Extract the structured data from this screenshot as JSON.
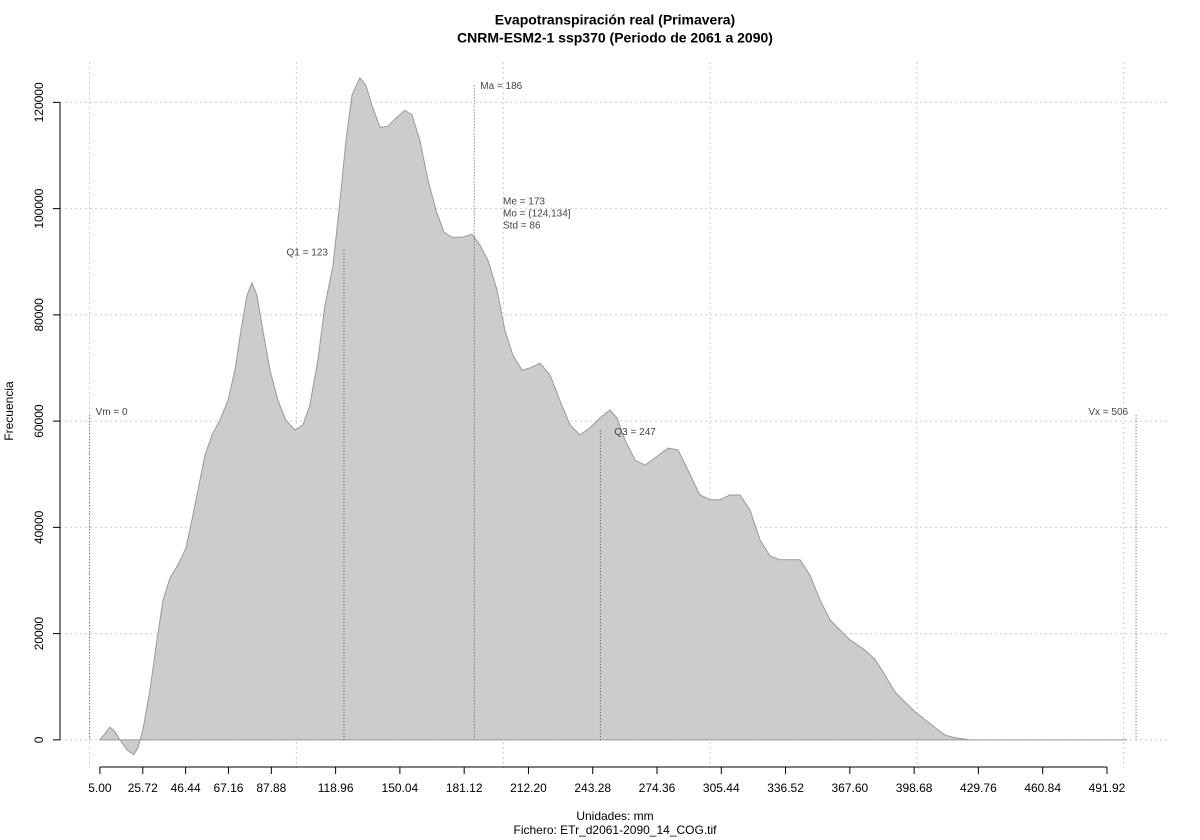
{
  "chart_data": {
    "type": "area",
    "title": "Evapotranspiración real (Primavera)",
    "subtitle": "CNRM-ESM2-1 ssp370 (Periodo de 2061 a 2090)",
    "x_label": "Unidades: mm",
    "caption": "Fichero: ETr_d2061-2090_14_COG.tif",
    "y_label": "Frecuencia",
    "color": "#cccccc",
    "line_color": "#999999",
    "x": [
      5.0,
      6.9,
      9.8,
      12.3,
      14.7,
      18.1,
      21.4,
      23.4,
      25.8,
      29.2,
      32.6,
      35.5,
      38.9,
      42.7,
      46.6,
      49.5,
      52.4,
      55.8,
      59.2,
      63.0,
      66.9,
      70.3,
      73.2,
      76.1,
      78.5,
      80.9,
      83.8,
      87.2,
      91.1,
      94.9,
      99.3,
      103.2,
      106.5,
      110.4,
      113.8,
      117.7,
      121.1,
      124.0,
      126.9,
      130.7,
      133.6,
      136.5,
      140.4,
      144.3,
      148.1,
      152.5,
      155.9,
      159.7,
      163.6,
      167.5,
      171.3,
      175.2,
      180.0,
      184.9,
      188.8,
      192.6,
      197.0,
      200.8,
      204.7,
      209.1,
      212.9,
      217.8,
      222.6,
      227.4,
      232.3,
      237.1,
      241.9,
      246.8,
      251.6,
      255.0,
      258.9,
      263.7,
      268.5,
      273.4,
      279.7,
      284.5,
      289.3,
      295.1,
      300.0,
      304.8,
      309.6,
      314.5,
      319.3,
      324.2,
      329.0,
      333.8,
      338.7,
      343.5,
      348.3,
      353.2,
      358.0,
      362.8,
      367.7,
      374.9,
      379.8,
      384.6,
      389.4,
      394.3,
      399.1,
      403.9,
      408.8,
      413.6,
      418.4,
      425.7,
      440.2,
      501.6
    ],
    "y": [
      0,
      900,
      2400,
      1500,
      0,
      -1900,
      -2800,
      -1500,
      1900,
      9400,
      18800,
      26300,
      30500,
      32900,
      36100,
      41400,
      47000,
      53600,
      57400,
      60200,
      63900,
      69600,
      77100,
      83700,
      86000,
      83700,
      77100,
      69600,
      63900,
      60200,
      58300,
      59300,
      63000,
      71500,
      81800,
      89300,
      101600,
      112900,
      121400,
      124600,
      123200,
      119500,
      115300,
      115500,
      117000,
      118500,
      117600,
      112900,
      105400,
      99700,
      95600,
      94600,
      94600,
      95200,
      93100,
      90300,
      84700,
      77100,
      72400,
      69600,
      70000,
      70900,
      68700,
      63900,
      59300,
      57400,
      58700,
      60600,
      62100,
      60600,
      56400,
      52700,
      51700,
      53100,
      54900,
      54600,
      50800,
      46100,
      45200,
      45200,
      46100,
      46100,
      43300,
      37600,
      34600,
      33900,
      33900,
      33900,
      31000,
      26300,
      22600,
      20700,
      18800,
      16900,
      15100,
      12200,
      9000,
      7100,
      5300,
      3800,
      2300,
      900,
      400,
      0,
      0,
      0
    ],
    "xlim": [
      -14.3,
      522.4
    ],
    "ylim": [
      -5300,
      127600
    ],
    "xticks": [
      {
        "value": 5,
        "label": "5.00"
      },
      25.72,
      46.44,
      67.16,
      87.88,
      118.96,
      150.04,
      181.12,
      {
        "value": 212.2,
        "label": "212.20"
      },
      243.28,
      274.36,
      305.44,
      336.52,
      {
        "value": 367.6,
        "label": "367.60"
      },
      398.68,
      429.76,
      460.84,
      491.92
    ],
    "yticks": [
      0,
      20000,
      40000,
      60000,
      80000,
      100000,
      120000
    ],
    "xgrid": [
      0,
      100,
      200,
      300,
      400,
      500
    ],
    "grid": true,
    "lines": [
      {
        "label": "Vm = 0",
        "x": 0,
        "top": 61100
      },
      {
        "label": "Q1 = 123",
        "x": 123,
        "top": 92200
      },
      {
        "label": "Ma = 186",
        "x": 186,
        "top": 123200
      },
      {
        "label": "Q3 = 247",
        "x": 247,
        "top": 58300
      },
      {
        "label": "Vx = 506",
        "x": 506,
        "top": 61100
      }
    ],
    "stats": [
      "Me = 173",
      "Mo = (124,134]",
      "Std = 86"
    ]
  }
}
